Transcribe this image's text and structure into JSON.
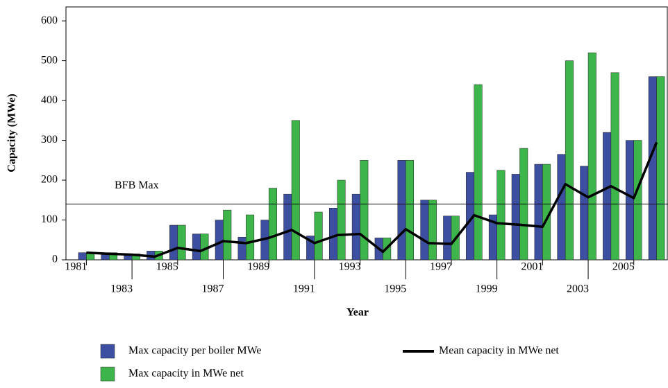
{
  "chart_data": {
    "type": "bar",
    "x_label": "Year",
    "y_label": "Capacity (MWe)",
    "categories": [
      "1981",
      null,
      "1983",
      null,
      "1985",
      null,
      "1987",
      null,
      "1989",
      null,
      "1991",
      null,
      "1993",
      null,
      "1995",
      null,
      "1997",
      null,
      "1999",
      null,
      "2001",
      null,
      "2003",
      null,
      "2005",
      null
    ],
    "series": [
      {
        "name": "Max capacity per boiler MWe",
        "color": "#3c4fa0",
        "values": [
          18,
          18,
          15,
          22,
          87,
          65,
          100,
          57,
          100,
          165,
          60,
          130,
          165,
          55,
          250,
          150,
          110,
          220,
          113,
          215,
          240,
          265,
          235,
          320,
          300,
          460
        ]
      },
      {
        "name": "Max capacity in MWe net",
        "color": "#3db54a",
        "values": [
          18,
          18,
          15,
          22,
          87,
          65,
          125,
          113,
          180,
          350,
          120,
          200,
          250,
          55,
          250,
          150,
          110,
          440,
          225,
          280,
          240,
          500,
          520,
          470,
          300,
          460
        ]
      },
      {
        "name": "Mean capacity in MWe net",
        "type": "line",
        "color": "#000000",
        "values": [
          18,
          15,
          13,
          8,
          30,
          22,
          47,
          42,
          55,
          75,
          42,
          62,
          65,
          20,
          77,
          42,
          40,
          112,
          92,
          88,
          83,
          190,
          157,
          185,
          155,
          295
        ]
      }
    ],
    "reference_line": {
      "label": "BFB Max",
      "value": 140
    },
    "ylim": [
      0,
      635
    ],
    "yticks": [
      0,
      100,
      200,
      300,
      400,
      500,
      600
    ]
  }
}
